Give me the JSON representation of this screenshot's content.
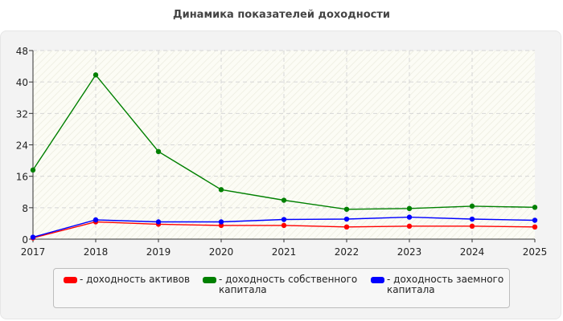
{
  "chart_data": {
    "type": "line",
    "title": "Динамика показателей доходности",
    "x": [
      "2017",
      "2018",
      "2019",
      "2020",
      "2021",
      "2022",
      "2023",
      "2024",
      "2025"
    ],
    "ylim": [
      0,
      48
    ],
    "yticks": [
      0,
      8,
      16,
      24,
      32,
      40,
      48
    ],
    "grid": true,
    "legend_position": "bottom",
    "series": [
      {
        "name": "доходность активов",
        "color": "#ff0000",
        "values": [
          0.3,
          4.4,
          3.8,
          3.5,
          3.5,
          3.1,
          3.3,
          3.3,
          3.1
        ]
      },
      {
        "name": "доходность собственного капитала",
        "color": "#008000",
        "values": [
          17.6,
          41.8,
          22.3,
          12.6,
          9.9,
          7.6,
          7.8,
          8.4,
          8.1
        ]
      },
      {
        "name": "доходность заемного капитала",
        "color": "#0000ff",
        "values": [
          0.5,
          4.9,
          4.4,
          4.4,
          5.0,
          5.1,
          5.6,
          5.1,
          4.8
        ]
      }
    ]
  },
  "legend": {
    "items": [
      {
        "label": "- доходность активов"
      },
      {
        "label": "- доходность собственного капитала"
      },
      {
        "label": "- доходность заемного капитала"
      }
    ]
  }
}
